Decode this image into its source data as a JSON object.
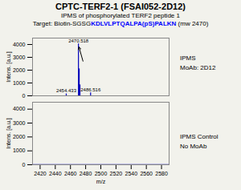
{
  "title": "CPTC-TERF2-1 (FSAI052-2D12)",
  "subtitle": "IPMS of phosphorylated TERF2 peptide 1",
  "target": [
    {
      "text": "Target: Biotin-SGSG"
    },
    {
      "text": "KDLVLPTQALPA(pS)PALKN",
      "color": "blue"
    },
    {
      "text": " (mw 2470)"
    }
  ],
  "background_color": "#f2f2ec",
  "chart_data": [
    {
      "type": "bar",
      "x": [
        2454.433,
        2470.518,
        2471.5,
        2472.5,
        2486.516
      ],
      "values": [
        150,
        4050,
        2100,
        850,
        230
      ],
      "color": "#0000bb",
      "xlim": [
        2410,
        2590
      ],
      "xticks": [
        2420,
        2440,
        2460,
        2480,
        2500,
        2520,
        2540,
        2560,
        2580
      ],
      "ylim": [
        0,
        4500
      ],
      "yticks": [
        0,
        1000,
        2000,
        3000,
        4000
      ],
      "ylabel": "Intens. [a.u.]",
      "tick_labels": "y",
      "annotations": [
        {
          "text": "2454.433",
          "x": 2454.433,
          "y": 150
        },
        {
          "text": "2470.518",
          "x": 2470.518,
          "y": 4050
        },
        {
          "text": "2486.516",
          "x": 2486.516,
          "y": 230
        }
      ],
      "arrows": [
        {
          "x1": 2476.5,
          "y1": 2700,
          "x2": 2471.2,
          "y2": 3800
        }
      ],
      "panel_label": "IPMS\nMoAb: 2D12"
    },
    {
      "type": "line",
      "x": [
        2410,
        2590
      ],
      "values": [
        5,
        5
      ],
      "color": "#0000bb",
      "xlim": [
        2410,
        2590
      ],
      "xticks": [
        2420,
        2440,
        2460,
        2480,
        2500,
        2520,
        2540,
        2560,
        2580
      ],
      "ylim": [
        0,
        4500
      ],
      "yticks": [
        0,
        1000,
        2000,
        3000,
        4000
      ],
      "xlabel": "m/z",
      "ylabel": "Intens. [a.u.]",
      "panel_label": "IPMS Control\nNo MoAb"
    }
  ]
}
